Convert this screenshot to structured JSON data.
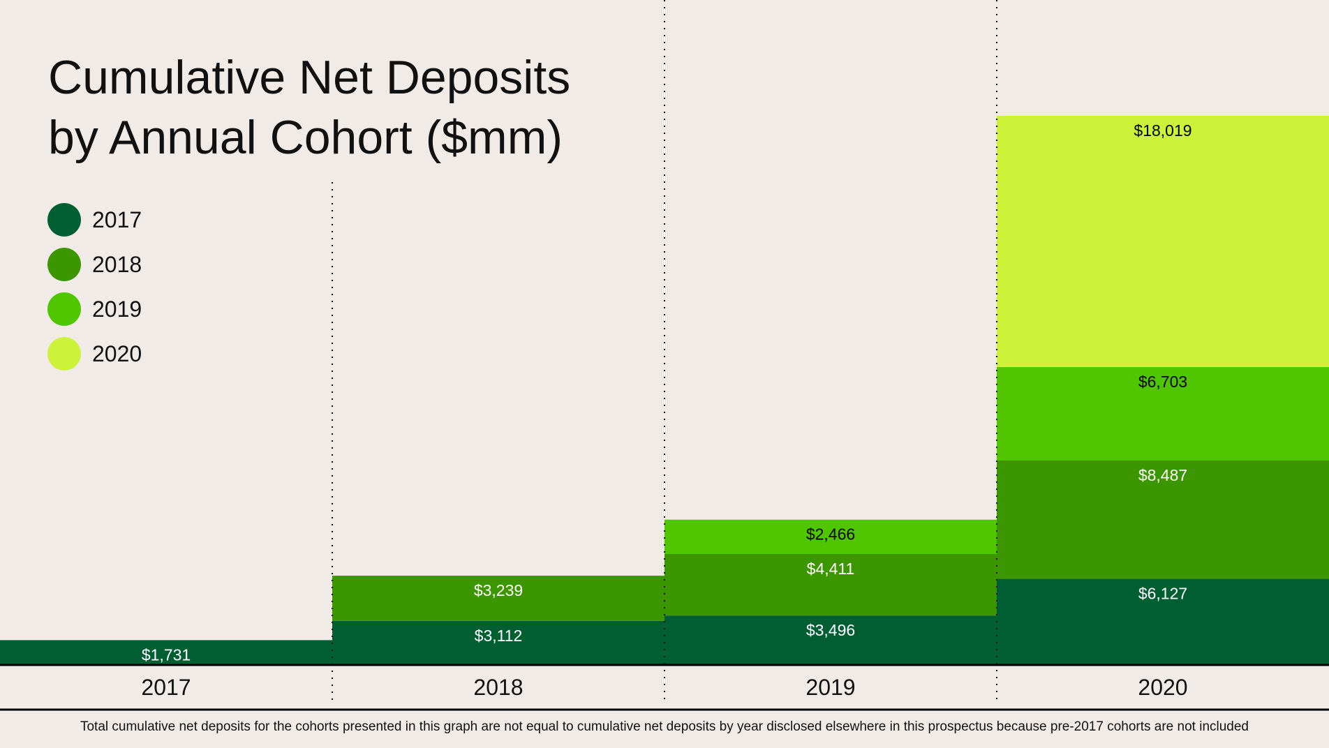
{
  "chart_data": {
    "type": "bar",
    "stacked": true,
    "title": "Cumulative Net Deposits by Annual Cohort ($mm)",
    "title_lines": [
      "Cumulative Net Deposits",
      "by Annual Cohort ($mm)"
    ],
    "categories": [
      "2017",
      "2018",
      "2019",
      "2020"
    ],
    "series": [
      {
        "name": "2017",
        "color": "#005e33",
        "values": [
          1731,
          3112,
          3496,
          6127
        ],
        "labels": [
          "$1,731",
          "$3,112",
          "$3,496",
          "$6,127"
        ],
        "label_color": "#ffffff"
      },
      {
        "name": "2018",
        "color": "#3b9600",
        "values": [
          null,
          3239,
          4411,
          8487
        ],
        "labels": [
          null,
          "$3,239",
          "$4,411",
          "$8,487"
        ],
        "label_color": "#ffffff"
      },
      {
        "name": "2019",
        "color": "#50c600",
        "values": [
          null,
          null,
          2466,
          6703
        ],
        "labels": [
          null,
          null,
          "$2,466",
          "$6,703"
        ],
        "label_color": "#000000"
      },
      {
        "name": "2020",
        "color": "#ccf23a",
        "values": [
          null,
          null,
          null,
          18019
        ],
        "labels": [
          null,
          null,
          null,
          "$18,019"
        ],
        "label_color": "#000000"
      }
    ],
    "ylim": [
      0,
      40000
    ],
    "grid": false,
    "legend_placement": "top-left",
    "footnote": "Total cumulative net deposits for the cohorts presented in this graph are not equal to cumulative net deposits by year disclosed elsewhere in this prospectus because pre-2017 cohorts are not included"
  }
}
